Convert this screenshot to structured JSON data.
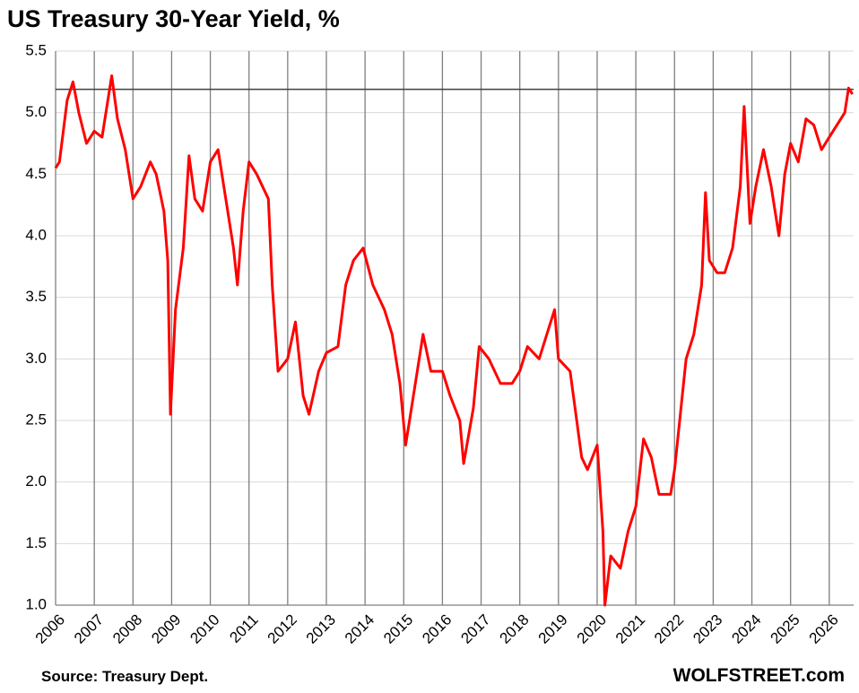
{
  "chart_data": {
    "type": "line",
    "title": "US Treasury 30-Year Yield, %",
    "source": "Source: Treasury Dept.",
    "watermark": "WOLFSTREET.com",
    "color": "#ff0000",
    "reference_line": 5.19,
    "grid": true,
    "xlim": [
      2006,
      2026.63
    ],
    "xticks": [
      2006,
      2007,
      2008,
      2009,
      2010,
      2011,
      2012,
      2013,
      2014,
      2015,
      2016,
      2017,
      2018,
      2019,
      2020,
      2021,
      2022,
      2023,
      2024,
      2025,
      2026
    ],
    "ylim": [
      1,
      5.5
    ],
    "yticks": [
      {
        "value": 1,
        "label": "1.0"
      },
      1.5,
      {
        "value": 2,
        "label": "2.0"
      },
      2.5,
      {
        "value": 3,
        "label": "3.0"
      },
      3.5,
      {
        "value": 4,
        "label": "4.0"
      },
      4.5,
      {
        "value": 5,
        "label": "5.0"
      },
      5.5
    ],
    "x": [
      2006.0,
      2006.1,
      2006.3,
      2006.45,
      2006.6,
      2006.8,
      2007.0,
      2007.2,
      2007.45,
      2007.6,
      2007.8,
      2008.0,
      2008.2,
      2008.45,
      2008.6,
      2008.8,
      2008.9,
      2008.97,
      2009.1,
      2009.3,
      2009.45,
      2009.6,
      2009.8,
      2010.0,
      2010.2,
      2010.4,
      2010.6,
      2010.7,
      2010.85,
      2011.0,
      2011.2,
      2011.5,
      2011.6,
      2011.75,
      2012.0,
      2012.2,
      2012.4,
      2012.55,
      2012.8,
      2013.0,
      2013.3,
      2013.5,
      2013.7,
      2013.95,
      2014.2,
      2014.5,
      2014.7,
      2014.9,
      2015.05,
      2015.3,
      2015.5,
      2015.7,
      2016.0,
      2016.2,
      2016.45,
      2016.55,
      2016.8,
      2016.95,
      2017.2,
      2017.5,
      2017.8,
      2018.0,
      2018.2,
      2018.5,
      2018.8,
      2018.9,
      2019.0,
      2019.3,
      2019.6,
      2019.75,
      2020.0,
      2020.15,
      2020.2,
      2020.35,
      2020.6,
      2020.8,
      2021.0,
      2021.2,
      2021.4,
      2021.6,
      2021.9,
      2022.0,
      2022.3,
      2022.5,
      2022.7,
      2022.8,
      2022.9,
      2023.1,
      2023.3,
      2023.5,
      2023.7,
      2023.8,
      2023.95,
      2024.1,
      2024.3,
      2024.5,
      2024.7,
      2024.85,
      2025.0,
      2025.2,
      2025.4,
      2025.6,
      2025.8,
      2026.0,
      2026.2,
      2026.4,
      2026.5,
      2026.6
    ],
    "values": [
      4.55,
      4.6,
      5.1,
      5.25,
      5.0,
      4.75,
      4.85,
      4.8,
      5.3,
      4.95,
      4.7,
      4.3,
      4.4,
      4.6,
      4.5,
      4.2,
      3.8,
      2.55,
      3.4,
      3.9,
      4.65,
      4.3,
      4.2,
      4.6,
      4.7,
      4.3,
      3.9,
      3.6,
      4.2,
      4.6,
      4.5,
      4.3,
      3.6,
      2.9,
      3.0,
      3.3,
      2.7,
      2.55,
      2.9,
      3.05,
      3.1,
      3.6,
      3.8,
      3.9,
      3.6,
      3.4,
      3.2,
      2.8,
      2.3,
      2.8,
      3.2,
      2.9,
      2.9,
      2.7,
      2.5,
      2.15,
      2.6,
      3.1,
      3.0,
      2.8,
      2.8,
      2.9,
      3.1,
      3.0,
      3.3,
      3.4,
      3.0,
      2.9,
      2.2,
      2.1,
      2.3,
      1.6,
      1.0,
      1.4,
      1.3,
      1.6,
      1.8,
      2.35,
      2.2,
      1.9,
      1.9,
      2.1,
      3.0,
      3.2,
      3.6,
      4.35,
      3.8,
      3.7,
      3.7,
      3.9,
      4.4,
      5.05,
      4.1,
      4.4,
      4.7,
      4.4,
      4.0,
      4.5,
      4.75,
      4.6,
      4.95,
      4.9,
      4.7,
      4.8,
      4.9,
      5.0,
      5.2,
      5.15
    ]
  }
}
